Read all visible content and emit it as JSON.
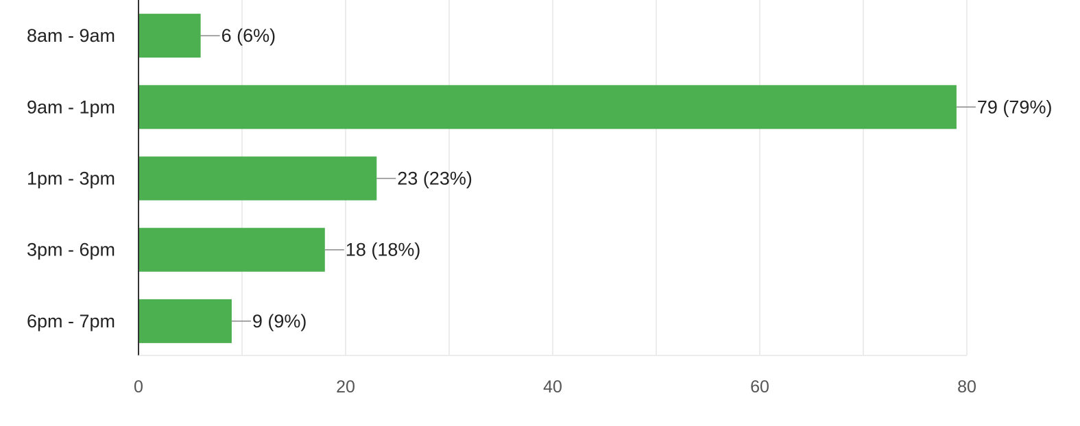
{
  "chart_data": {
    "type": "bar",
    "orientation": "horizontal",
    "categories": [
      "8am - 9am",
      "9am - 1pm",
      "1pm - 3pm",
      "3pm - 6pm",
      "6pm - 7pm"
    ],
    "values": [
      6,
      79,
      23,
      18,
      9
    ],
    "data_labels": [
      "6 (6%)",
      "79 (79%)",
      "23 (23%)",
      "18 (18%)",
      "9 (9%)"
    ],
    "x_ticks": [
      0,
      20,
      40,
      60,
      80
    ],
    "xlim": [
      0,
      80
    ],
    "minor_gridlines_every": 10,
    "grid": true,
    "legend": "none",
    "title": "",
    "xlabel": "",
    "ylabel": ""
  },
  "colors": {
    "bar": "#4caf50",
    "grid": "#e6e6e6",
    "axis": "#333333",
    "leader": "#888888"
  }
}
